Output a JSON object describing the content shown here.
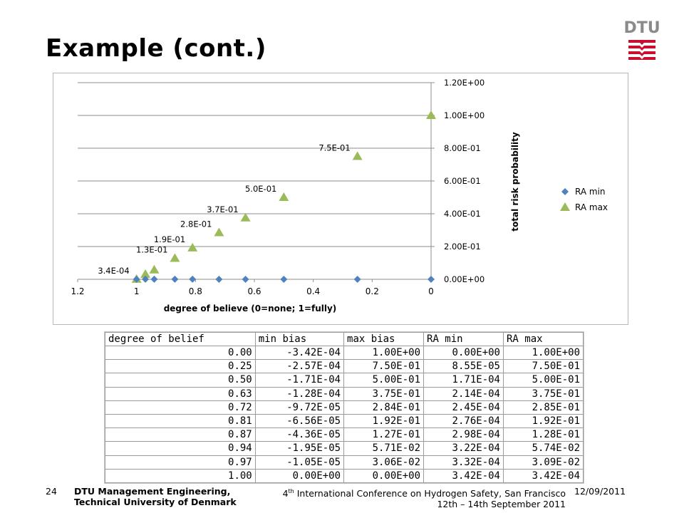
{
  "slide": {
    "title": "Example (cont.)"
  },
  "logo": {
    "text": "DTU"
  },
  "chart_data": {
    "type": "scatter",
    "xlabel": "degree of believe (0=none; 1=fully)",
    "ylabel": "total risk probability",
    "xlim": [
      0,
      1.2
    ],
    "ylim": [
      0,
      1.2
    ],
    "x_reversed": true,
    "y_axis_side": "right",
    "x_ticks": [
      "1.2",
      "1",
      "0.8",
      "0.6",
      "0.4",
      "0.2",
      "0"
    ],
    "y_ticks": [
      "0.00E+00",
      "2.00E-01",
      "4.00E-01",
      "6.00E-01",
      "8.00E-01",
      "1.00E+00",
      "1.20E+00"
    ],
    "grid": "horizontal",
    "legend_position": "right",
    "series": [
      {
        "name": "RA min",
        "color": "#4f81bd",
        "marker": "diamond",
        "x": [
          0.0,
          0.25,
          0.5,
          0.63,
          0.72,
          0.81,
          0.87,
          0.94,
          0.97,
          1.0
        ],
        "y": [
          0.0,
          8.55e-05,
          0.000171,
          0.000214,
          0.000245,
          0.000276,
          0.000298,
          0.000322,
          0.000332,
          0.000342
        ]
      },
      {
        "name": "RA max",
        "color": "#9bbb59",
        "marker": "triangle",
        "x": [
          0.0,
          0.25,
          0.5,
          0.63,
          0.72,
          0.81,
          0.87,
          0.94,
          0.97,
          1.0
        ],
        "y": [
          1.0,
          0.75,
          0.5,
          0.375,
          0.285,
          0.192,
          0.128,
          0.0574,
          0.0309,
          0.000342
        ]
      }
    ],
    "annotations": [
      {
        "x": 0.25,
        "y": 0.75,
        "text": "7.5E-01"
      },
      {
        "x": 0.5,
        "y": 0.5,
        "text": "5.0E-01"
      },
      {
        "x": 0.63,
        "y": 0.375,
        "text": "3.7E-01"
      },
      {
        "x": 0.72,
        "y": 0.285,
        "text": "2.8E-01"
      },
      {
        "x": 0.81,
        "y": 0.192,
        "text": "1.9E-01"
      },
      {
        "x": 0.87,
        "y": 0.128,
        "text": "1.3E-01"
      },
      {
        "x": 1.0,
        "y": 0.000342,
        "text": "3.4E-04"
      }
    ]
  },
  "table": {
    "headers": [
      "degree of belief",
      "min bias",
      "max bias",
      "RA min",
      "RA max"
    ],
    "rows": [
      [
        "0.00",
        "-3.42E-04",
        "1.00E+00",
        "0.00E+00",
        "1.00E+00"
      ],
      [
        "0.25",
        "-2.57E-04",
        "7.50E-01",
        "8.55E-05",
        "7.50E-01"
      ],
      [
        "0.50",
        "-1.71E-04",
        "5.00E-01",
        "1.71E-04",
        "5.00E-01"
      ],
      [
        "0.63",
        "-1.28E-04",
        "3.75E-01",
        "2.14E-04",
        "3.75E-01"
      ],
      [
        "0.72",
        "-9.72E-05",
        "2.84E-01",
        "2.45E-04",
        "2.85E-01"
      ],
      [
        "0.81",
        "-6.56E-05",
        "1.92E-01",
        "2.76E-04",
        "1.92E-01"
      ],
      [
        "0.87",
        "-4.36E-05",
        "1.27E-01",
        "2.98E-04",
        "1.28E-01"
      ],
      [
        "0.94",
        "-1.95E-05",
        "5.71E-02",
        "3.22E-04",
        "5.74E-02"
      ],
      [
        "0.97",
        "-1.05E-05",
        "3.06E-02",
        "3.32E-04",
        "3.09E-02"
      ],
      [
        "1.00",
        "0.00E+00",
        "0.00E+00",
        "3.42E-04",
        "3.42E-04"
      ]
    ]
  },
  "footer": {
    "page_number": "24",
    "org_line1": "DTU Management Engineering,",
    "org_line2": "Technical University of Denmark",
    "conf_line1_num": "4",
    "conf_line1_sup": "th",
    "conf_line1_rest": " International Conference on Hydrogen Safety, San Francisco",
    "conf_line2": "12th – 14th September 2011",
    "date": "12/09/2011"
  }
}
